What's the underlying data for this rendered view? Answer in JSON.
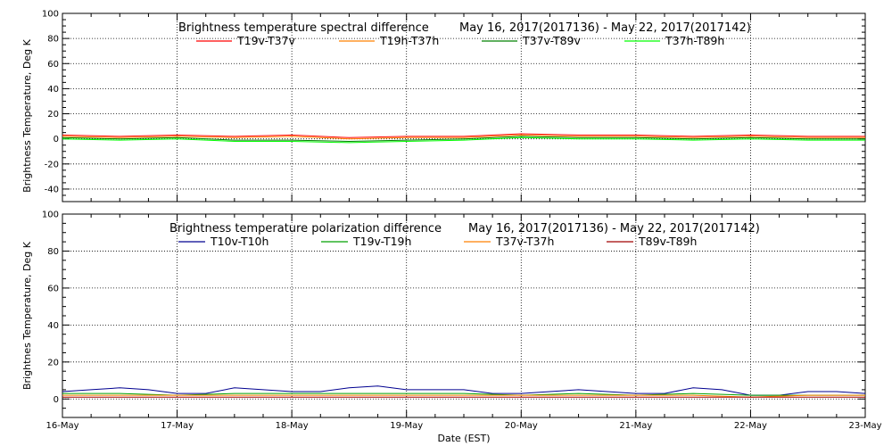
{
  "x_axis": {
    "label": "Date (EST)",
    "tick_labels": [
      "16-May",
      "17-May",
      "18-May",
      "19-May",
      "20-May",
      "21-May",
      "22-May",
      "23-May"
    ]
  },
  "chart_data": [
    {
      "type": "line",
      "title": "Brightness temperature spectral difference",
      "date_range": "May 16, 2017(2017136) - May 22, 2017(2017142)",
      "xlabel": "",
      "ylabel": "Brightness Temperature, Deg K",
      "ylim": [
        -50,
        100
      ],
      "xlim": [
        0,
        7
      ],
      "yticks": [
        -40,
        -20,
        0,
        20,
        40,
        60,
        80,
        100
      ],
      "grid": "dotted vertical (daily) and horizontal",
      "legend_placement": "top",
      "series": [
        {
          "name": "T19v-T37v",
          "color": "#ff0000",
          "x": [
            0,
            0.5,
            1,
            1.5,
            2,
            2.5,
            3,
            3.5,
            4,
            4.5,
            5,
            5.5,
            6,
            6.5,
            7
          ],
          "values": [
            3,
            2,
            3,
            2,
            3,
            1,
            2,
            2,
            4,
            3,
            3,
            2,
            3,
            2,
            2
          ]
        },
        {
          "name": "T19h-T37h",
          "color": "#ff8000",
          "x": [
            0,
            0.5,
            1,
            1.5,
            2,
            2.5,
            3,
            3.5,
            4,
            4.5,
            5,
            5.5,
            6,
            6.5,
            7
          ],
          "values": [
            2,
            1,
            2,
            1,
            2,
            0,
            1,
            1,
            3,
            2,
            2,
            1,
            2,
            1,
            1
          ]
        },
        {
          "name": "T37v-T89v",
          "color": "#008000",
          "x": [
            0,
            0.5,
            1,
            1.5,
            2,
            2.5,
            3,
            3.5,
            4,
            4.5,
            5,
            5.5,
            6,
            6.5,
            7
          ],
          "values": [
            1,
            0,
            1,
            -1,
            -1,
            -2,
            -1,
            0,
            2,
            1,
            1,
            0,
            1,
            0,
            0
          ]
        },
        {
          "name": "T37h-T89h",
          "color": "#00ff00",
          "x": [
            0,
            0.5,
            1,
            1.5,
            2,
            2.5,
            3,
            3.5,
            4,
            4.5,
            5,
            5.5,
            6,
            6.5,
            7
          ],
          "values": [
            0,
            -1,
            0,
            -2,
            -2,
            -3,
            -2,
            -1,
            1,
            0,
            0,
            -1,
            0,
            -1,
            -1
          ]
        }
      ]
    },
    {
      "type": "line",
      "title": "Brightness temperature polarization difference",
      "date_range": "May 16, 2017(2017136) - May 22, 2017(2017142)",
      "xlabel": "Date (EST)",
      "ylabel": "Brightnes Temperature, Deg K",
      "ylim": [
        -10,
        100
      ],
      "xlim": [
        0,
        7
      ],
      "yticks": [
        0,
        20,
        40,
        60,
        80,
        100
      ],
      "grid": "dotted vertical (daily) and horizontal",
      "legend_placement": "top",
      "series": [
        {
          "name": "T10v-T10h",
          "color": "#000090",
          "x": [
            0,
            0.25,
            0.5,
            0.75,
            1,
            1.25,
            1.5,
            1.75,
            2,
            2.25,
            2.5,
            2.75,
            3,
            3.25,
            3.5,
            3.75,
            4,
            4.25,
            4.5,
            4.75,
            5,
            5.25,
            5.5,
            5.75,
            6,
            6.25,
            6.5,
            6.75,
            7
          ],
          "values": [
            4,
            5,
            6,
            5,
            3,
            3,
            6,
            5,
            4,
            4,
            6,
            7,
            5,
            5,
            5,
            3,
            3,
            4,
            5,
            4,
            3,
            3,
            6,
            5,
            2,
            2,
            4,
            4,
            3
          ]
        },
        {
          "name": "T19v-T19h",
          "color": "#00a000",
          "x": [
            0,
            0.5,
            1,
            1.5,
            2,
            2.5,
            3,
            3.5,
            4,
            4.5,
            5,
            5.5,
            6,
            6.5,
            7
          ],
          "values": [
            3,
            3,
            2,
            3,
            3,
            3,
            3,
            3,
            2,
            3,
            2,
            3,
            2,
            2,
            2
          ]
        },
        {
          "name": "T37v-T37h",
          "color": "#ff8000",
          "x": [
            0,
            0.5,
            1,
            1.5,
            2,
            2.5,
            3,
            3.5,
            4,
            4.5,
            5,
            5.5,
            6,
            6.5,
            7
          ],
          "values": [
            2,
            2,
            2,
            2,
            2,
            2,
            2,
            2,
            2,
            2,
            2,
            2,
            1,
            2,
            2
          ]
        },
        {
          "name": "T89v-T89h",
          "color": "#a00000",
          "x": [
            0,
            0.5,
            1,
            1.5,
            2,
            2.5,
            3,
            3.5,
            4,
            4.5,
            5,
            5.5,
            6,
            6.5,
            7
          ],
          "values": [
            1,
            1,
            1,
            1,
            1,
            1,
            1,
            1,
            1,
            1,
            1,
            1,
            1,
            1,
            1
          ]
        }
      ]
    }
  ]
}
